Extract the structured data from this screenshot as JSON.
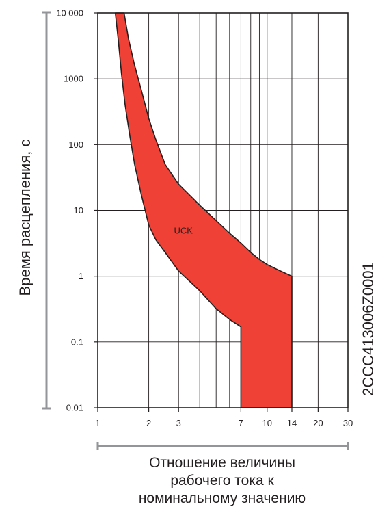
{
  "colors": {
    "band_fill": "#ef4136",
    "band_stroke": "#231f20",
    "grid": "#231f20",
    "axis_bar": "#939598",
    "text": "#231f20"
  },
  "chart_data": {
    "type": "area",
    "title": "",
    "ylabel": "Время расцепления, с",
    "xlabel_lines": [
      "Отношение величины",
      "рабочего тока к",
      "номинальному значению"
    ],
    "image_code": "2CCC413006Z0001",
    "x_scale": "log",
    "y_scale": "log",
    "xlim": [
      1,
      30
    ],
    "ylim": [
      0.01,
      10000
    ],
    "x_ticks": [
      1,
      2,
      3,
      7,
      10,
      14,
      20,
      30
    ],
    "x_tick_labels": [
      "1",
      "2",
      "3",
      "7",
      "10",
      "14",
      "20",
      "30"
    ],
    "x_grid": [
      1,
      2,
      3,
      4,
      5,
      6,
      7,
      8,
      9,
      10,
      14,
      20,
      30
    ],
    "y_ticks": [
      0.01,
      0.1,
      1,
      10,
      100,
      1000,
      10000
    ],
    "y_tick_labels": [
      "0.01",
      "0.1",
      "1",
      "10",
      "100",
      "1000",
      "10 000"
    ],
    "grid": true,
    "series": [
      {
        "name": "UCK",
        "label_position": {
          "x": 3.2,
          "y": 5
        },
        "upper_curve": [
          [
            1.43,
            10000
          ],
          [
            1.52,
            4000
          ],
          [
            1.65,
            1600
          ],
          [
            1.8,
            700
          ],
          [
            2.0,
            250
          ],
          [
            2.2,
            120
          ],
          [
            2.5,
            50
          ],
          [
            3.0,
            25
          ],
          [
            4.0,
            12
          ],
          [
            5.0,
            7
          ],
          [
            6.0,
            4.5
          ],
          [
            7.0,
            3.2
          ],
          [
            8.0,
            2.3
          ],
          [
            9.0,
            1.8
          ],
          [
            10.0,
            1.5
          ],
          [
            12.0,
            1.2
          ],
          [
            14.0,
            1.0
          ]
        ],
        "lower_curve": [
          [
            1.27,
            10000
          ],
          [
            1.32,
            4000
          ],
          [
            1.38,
            1200
          ],
          [
            1.45,
            400
          ],
          [
            1.55,
            130
          ],
          [
            1.65,
            50
          ],
          [
            1.8,
            18
          ],
          [
            2.0,
            6
          ],
          [
            2.2,
            3.6
          ],
          [
            2.5,
            2.3
          ],
          [
            3.0,
            1.2
          ],
          [
            4.0,
            0.6
          ],
          [
            5.0,
            0.32
          ],
          [
            6.0,
            0.22
          ],
          [
            7.0,
            0.17
          ],
          [
            7.0,
            0.01
          ]
        ],
        "right_edge": [
          [
            14.0,
            1.0
          ],
          [
            14.0,
            0.01
          ]
        ]
      }
    ]
  }
}
